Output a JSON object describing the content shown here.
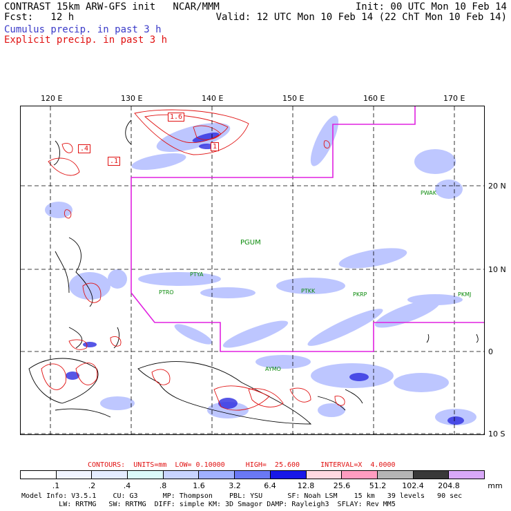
{
  "header": {
    "line1_left": "CONTRAST 15km ARW-GFS init   NCAR/MMM",
    "line1_right": "Init: 00 UTC Mon 10 Feb 14",
    "line2_left": "Fcst:   12 h",
    "line2_right": "Valid: 12 UTC Mon 10 Feb 14 (22 ChT Mon 10 Feb 14)",
    "cumulus_label": "Cumulus precip. in past 3 h",
    "explicit_label": "Explicit precip. in past 3 h",
    "cumulus_color": "#3a3ac8",
    "explicit_color": "#e01010"
  },
  "map": {
    "lon_labels": [
      "120 E",
      "130 E",
      "140 E",
      "150 E",
      "160 E",
      "170 E"
    ],
    "lat_labels": [
      "20 N",
      "10 N",
      "0",
      "10 S"
    ],
    "stations": [
      "PWAK",
      "PGUM",
      "PTYA",
      "PTRO",
      "PTKK",
      "PKRP",
      "PKMJ",
      "AYMO"
    ],
    "contour_labels": [
      "1.6",
      ".4",
      ".1",
      "1"
    ],
    "boundary_color": "#e020e0"
  },
  "contours": {
    "text": "CONTOURS:  UNITS=mm  LOW= 0.10000     HIGH=  25.600     INTERVAL=X  4.0000",
    "color": "#e01010"
  },
  "colorbar": {
    "labels": [
      ".1",
      ".2",
      ".4",
      ".8",
      "1.6",
      "3.2",
      "6.4",
      "12.8",
      "25.6",
      "51.2",
      "102.4",
      "204.8"
    ],
    "unit": "mm",
    "colors": [
      "#ffffff",
      "#f0f4ff",
      "#e4ecff",
      "#dcfafa",
      "#c8d4ff",
      "#a0b0ff",
      "#6a78f4",
      "#1818e8",
      "#ffd8e0",
      "#ff9cc0",
      "#b4b4b4",
      "#383838",
      "#d8a8f8"
    ]
  },
  "footer": {
    "line1": "Model Info: V3.5.1    CU: G3      MP: Thompson    PBL: YSU      SF: Noah LSM    15 km   39 levels   90 sec",
    "line2": "         LW: RRTMG   SW: RRTMG  DIFF: simple KM: 3D Smagor DAMP: Rayleigh3  SFLAY: Rev MM5"
  }
}
